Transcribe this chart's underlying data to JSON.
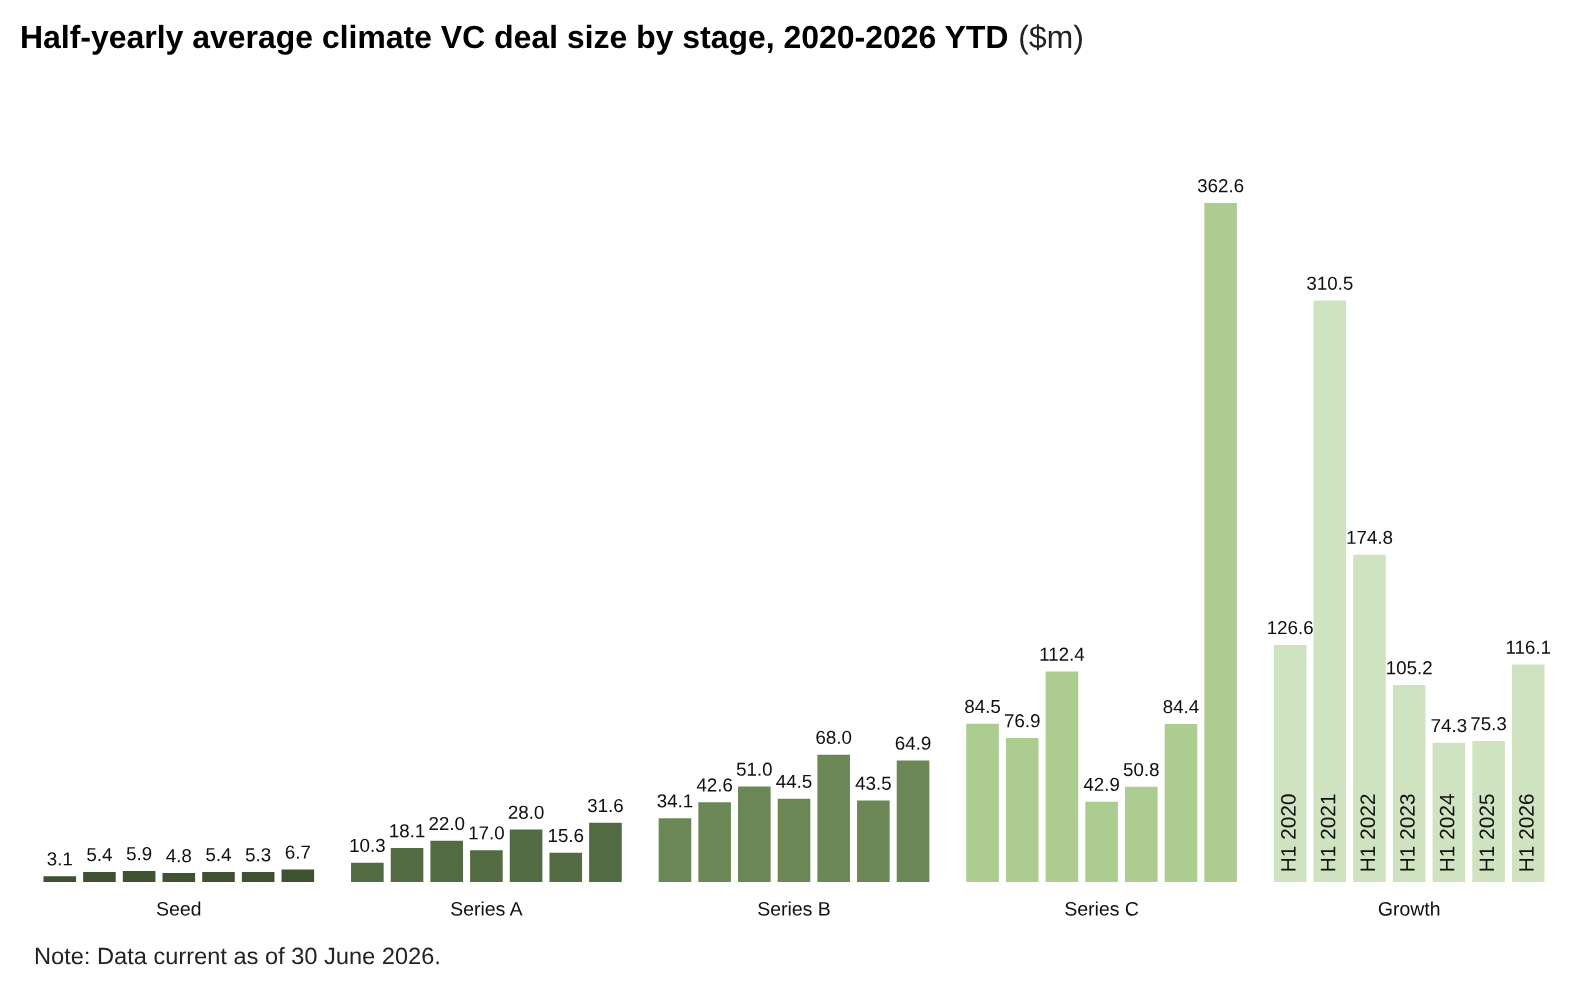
{
  "chart_data": {
    "type": "bar",
    "title": "Half-yearly average climate VC deal size by stage, 2020-2026 YTD",
    "subtitle": "($m)",
    "annotations": [
      "Note: Data current as of 30 June 2026."
    ],
    "categories": [
      "Seed",
      "Series A",
      "Series B",
      "Series C",
      "Growth"
    ],
    "series": [
      {
        "name": "H1 2020",
        "colors": [
          "#3e5131",
          "#536b42",
          "#6b8756",
          "#adcc90",
          "#d0e3c1"
        ],
        "values": [
          3.1,
          10.3,
          34.1,
          84.5,
          126.6
        ],
        "value_labels": [
          "3.1",
          "10.3",
          "34.1",
          "84.5",
          "126.6"
        ]
      },
      {
        "name": "H1 2021",
        "colors": [
          "#3e5131",
          "#536b42",
          "#6b8756",
          "#adcc90",
          "#d0e3c1"
        ],
        "values": [
          5.4,
          18.1,
          42.6,
          76.9,
          310.5
        ],
        "value_labels": [
          "5.4",
          "18.1",
          "42.6",
          "76.9",
          "310.5"
        ]
      },
      {
        "name": "H1 2022",
        "colors": [
          "#3e5131",
          "#536b42",
          "#6b8756",
          "#adcc90",
          "#d0e3c1"
        ],
        "values": [
          5.9,
          22.0,
          51.0,
          112.4,
          174.8
        ],
        "value_labels": [
          "5.9",
          "22.0",
          "51.0",
          "112.4",
          "174.8"
        ]
      },
      {
        "name": "H1 2023",
        "colors": [
          "#3e5131",
          "#536b42",
          "#6b8756",
          "#adcc90",
          "#d0e3c1"
        ],
        "values": [
          4.8,
          17.0,
          44.5,
          42.9,
          105.2
        ],
        "value_labels": [
          "4.8",
          "17.0",
          "44.5",
          "42.9",
          "105.2"
        ]
      },
      {
        "name": "H1 2024",
        "colors": [
          "#3e5131",
          "#536b42",
          "#6b8756",
          "#adcc90",
          "#d0e3c1"
        ],
        "values": [
          5.4,
          28.0,
          68.0,
          50.8,
          74.3
        ],
        "value_labels": [
          "5.4",
          "28.0",
          "68.0",
          "50.8",
          "74.3"
        ]
      },
      {
        "name": "H1 2025",
        "colors": [
          "#3e5131",
          "#536b42",
          "#6b8756",
          "#adcc90",
          "#d0e3c1"
        ],
        "values": [
          5.3,
          15.6,
          43.5,
          84.4,
          75.3
        ],
        "value_labels": [
          "5.3",
          "15.6",
          "43.5",
          "84.4",
          "75.3"
        ]
      },
      {
        "name": "H1 2026",
        "colors": [
          "#3e5131",
          "#536b42",
          "#6b8756",
          "#adcc90",
          "#d0e3c1"
        ],
        "values": [
          6.7,
          31.6,
          64.9,
          362.6,
          116.1
        ],
        "value_labels": [
          "6.7",
          "31.6",
          "64.9",
          "362.6",
          "116.1"
        ]
      }
    ],
    "tick_labels": "x",
    "grid": false,
    "legend": false
  }
}
